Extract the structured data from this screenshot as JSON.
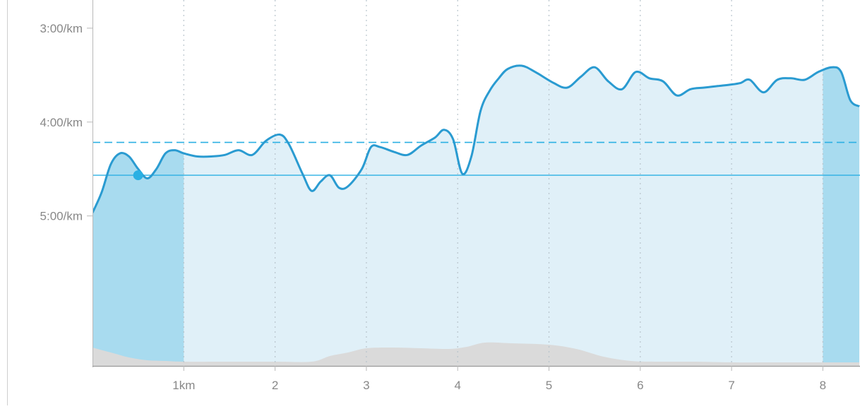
{
  "chart_data": {
    "type": "area",
    "title": "",
    "xlabel": "",
    "ylabel": "",
    "x_unit_label": "km",
    "x_ticks": [
      {
        "value": 1,
        "label": "1km"
      },
      {
        "value": 2,
        "label": "2"
      },
      {
        "value": 3,
        "label": "3"
      },
      {
        "value": 4,
        "label": "4"
      },
      {
        "value": 5,
        "label": "5"
      },
      {
        "value": 6,
        "label": "6"
      },
      {
        "value": 7,
        "label": "7"
      },
      {
        "value": 8,
        "label": "8"
      }
    ],
    "y_ticks": [
      {
        "value": 180,
        "label": "3:00/km"
      },
      {
        "value": 240,
        "label": "4:00/km"
      },
      {
        "value": 300,
        "label": "5:00/km"
      }
    ],
    "xlim": [
      0,
      8.4
    ],
    "ylim_pace_seconds_per_km": [
      162,
      396
    ],
    "y_inverted": true,
    "vertical_grid": true,
    "highlight_ranges_km": [
      [
        0,
        1
      ],
      [
        8,
        8.4
      ]
    ],
    "colors": {
      "pace_line": "#2a9bd1",
      "pace_fill": "#e0f0f8",
      "highlight_fill": "#a8dbef",
      "average_line": "#2bb0e3",
      "marker": "#2bb0e3",
      "elevation_fill": "#dadada",
      "axis": "#b8b8b8",
      "tick_text": "#888888",
      "grid": "#b8c4cc"
    },
    "pace_series": {
      "name": "",
      "x": [
        0,
        0.1,
        0.2,
        0.3,
        0.4,
        0.5,
        0.6,
        0.7,
        0.8,
        0.9,
        1.0,
        1.15,
        1.3,
        1.45,
        1.6,
        1.75,
        1.9,
        2.05,
        2.15,
        2.3,
        2.4,
        2.5,
        2.6,
        2.7,
        2.8,
        2.95,
        3.05,
        3.15,
        3.3,
        3.45,
        3.6,
        3.75,
        3.85,
        3.95,
        4.05,
        4.15,
        4.25,
        4.35,
        4.45,
        4.55,
        4.7,
        4.85,
        5.05,
        5.2,
        5.35,
        5.5,
        5.65,
        5.8,
        5.95,
        6.1,
        6.25,
        6.4,
        6.55,
        6.7,
        6.85,
        7.0,
        7.1,
        7.2,
        7.35,
        7.5,
        7.65,
        7.8,
        7.95,
        8.1,
        8.2,
        8.3,
        8.4
      ],
      "pace_seconds_per_km": [
        298,
        285,
        267,
        260,
        262,
        270,
        276,
        270,
        260,
        258,
        260,
        262,
        262,
        261,
        258,
        261,
        252,
        248,
        254,
        273,
        284,
        278,
        274,
        282,
        281,
        270,
        256,
        256,
        259,
        261,
        255,
        250,
        245,
        251,
        273,
        262,
        233,
        220,
        212,
        206,
        204,
        208,
        215,
        218,
        211,
        205,
        214,
        219,
        208,
        212,
        214,
        223,
        219,
        218,
        217,
        216,
        215,
        213,
        221,
        213,
        212,
        213,
        208,
        205,
        208,
        226,
        230
      ]
    },
    "average_pace": {
      "dashed_line_seconds_per_km": 253,
      "solid_line_seconds_per_km": 274
    },
    "current_position": {
      "km": 0.5,
      "pace_seconds_per_km": 274
    },
    "elevation_series": {
      "name": "",
      "x": [
        0,
        0.2,
        0.4,
        0.6,
        0.8,
        1.0,
        1.5,
        2.0,
        2.4,
        2.6,
        2.8,
        3.0,
        3.3,
        3.6,
        3.9,
        4.1,
        4.3,
        4.6,
        5.0,
        5.3,
        5.6,
        5.9,
        6.2,
        6.6,
        7.0,
        7.5,
        8.0,
        8.4
      ],
      "elevation_m": [
        23,
        16,
        9,
        5,
        4,
        3,
        3,
        3,
        3,
        11,
        16,
        22,
        23,
        22,
        21,
        24,
        30,
        29,
        27,
        21,
        10,
        4,
        3,
        3,
        2,
        2,
        2,
        2
      ]
    }
  }
}
